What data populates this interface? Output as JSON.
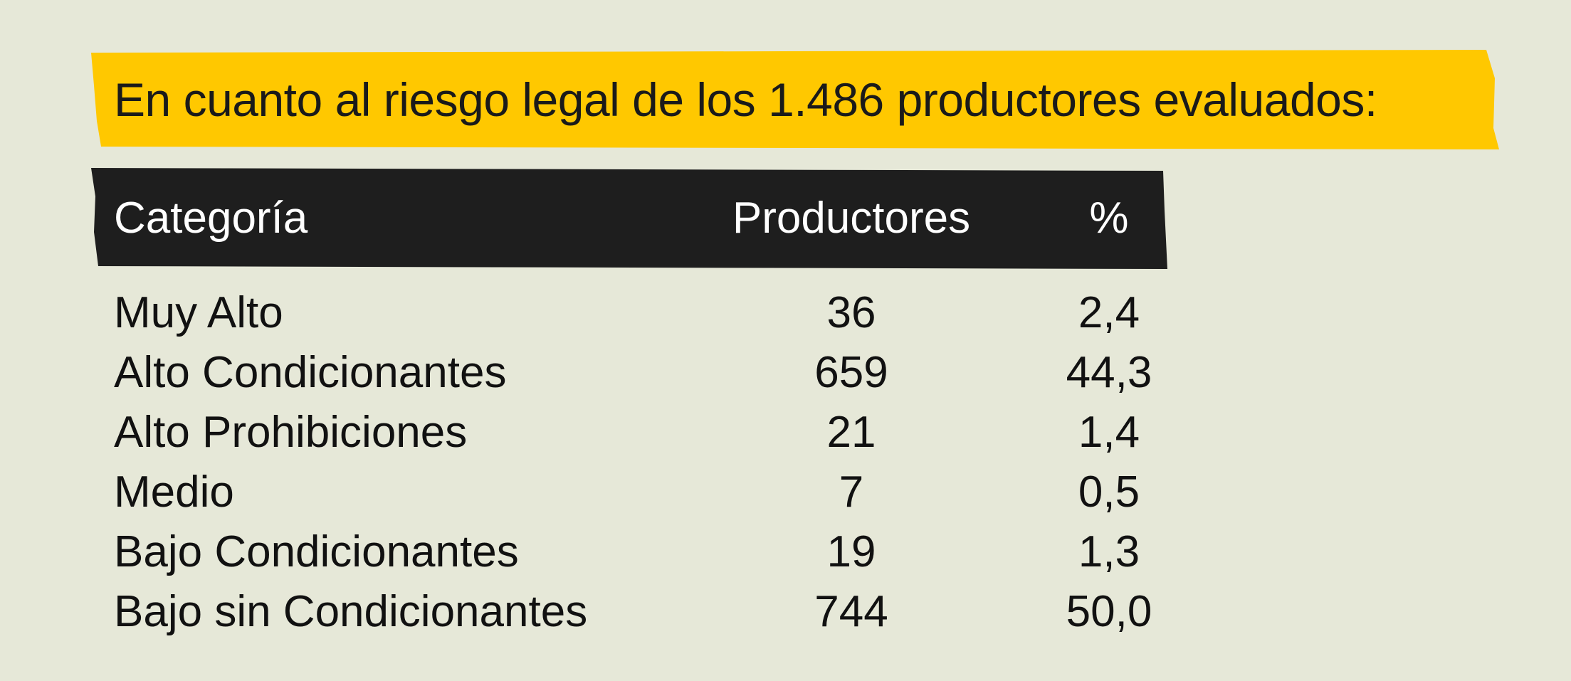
{
  "banner": {
    "title": "En cuanto al riesgo legal de los 1.486 productores evaluados:",
    "color": "#ffc800"
  },
  "table": {
    "header_color": "#1e1e1e",
    "columns": {
      "category": "Categoría",
      "producers": "Productores",
      "percent": "%"
    },
    "rows": [
      {
        "category": "Muy Alto",
        "producers": "36",
        "percent": "2,4"
      },
      {
        "category": "Alto Condicionantes",
        "producers": "659",
        "percent": "44,3"
      },
      {
        "category": "Alto Prohibiciones",
        "producers": "21",
        "percent": "1,4"
      },
      {
        "category": "Medio",
        "producers": "7",
        "percent": "0,5"
      },
      {
        "category": "Bajo Condicionantes",
        "producers": "19",
        "percent": "1,3"
      },
      {
        "category": "Bajo sin Condicionantes",
        "producers": "744",
        "percent": "50,0"
      }
    ]
  }
}
